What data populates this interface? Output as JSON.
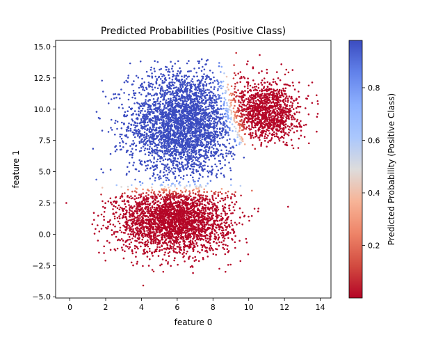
{
  "chart_data": {
    "type": "scatter",
    "title": "Predicted Probabilities (Positive Class)",
    "xlabel": "feature 0",
    "ylabel": "feature 1",
    "xlim": [
      -0.8,
      14.6
    ],
    "ylim": [
      -5.1,
      15.5
    ],
    "xticks": [
      0,
      2,
      4,
      6,
      8,
      10,
      12,
      14
    ],
    "xtick_labels": [
      "0",
      "2",
      "4",
      "6",
      "8",
      "10",
      "12",
      "14"
    ],
    "yticks": [
      -5.0,
      -2.5,
      0.0,
      2.5,
      5.0,
      7.5,
      10.0,
      12.5,
      15.0
    ],
    "ytick_labels": [
      "−5.0",
      "−2.5",
      "0.0",
      "2.5",
      "5.0",
      "7.5",
      "10.0",
      "12.5",
      "15.0"
    ],
    "grid": false,
    "colormap": "coolwarm",
    "color_range": [
      0.0,
      0.98
    ],
    "colorbar": {
      "label": "Predicted Probability (Positive Class)",
      "ticks": [
        0.2,
        0.4,
        0.6,
        0.8
      ],
      "tick_labels": [
        "0.2",
        "0.4",
        "0.6",
        "0.8"
      ]
    },
    "clusters": [
      {
        "name": "",
        "center": [
          6.3,
          8.8
        ],
        "spread": [
          1.5,
          2.1
        ],
        "x_range": [
          0.8,
          9.8
        ],
        "y_range": [
          3.6,
          14.0
        ],
        "probability": "high (~0.9)"
      },
      {
        "name": "",
        "center": [
          5.8,
          1.1
        ],
        "spread": [
          1.6,
          1.3
        ],
        "x_range": [
          1.2,
          10.6
        ],
        "y_range": [
          -3.2,
          4.1
        ],
        "probability": "low (~0.02)"
      },
      {
        "name": "",
        "center": [
          11.0,
          9.8
        ],
        "spread": [
          0.9,
          1.2
        ],
        "x_range": [
          8.6,
          13.9
        ],
        "y_range": [
          6.8,
          14.5
        ],
        "probability": "low (~0.02)"
      }
    ],
    "decision_boundaries": [
      {
        "description": "horizontal transition",
        "y": 3.8
      },
      {
        "description": "curved transition",
        "x_at_top": 8.7,
        "x_at_bottom": 9.8,
        "y_range": [
          6.8,
          12.8
        ]
      }
    ],
    "outliers": [
      [
        -0.2,
        2.5
      ],
      [
        4.1,
        -4.1
      ],
      [
        2.0,
        11.0
      ],
      [
        12.2,
        2.2
      ],
      [
        13.8,
        8.2
      ],
      [
        9.3,
        14.5
      ],
      [
        8.7,
        -3.0
      ]
    ]
  }
}
